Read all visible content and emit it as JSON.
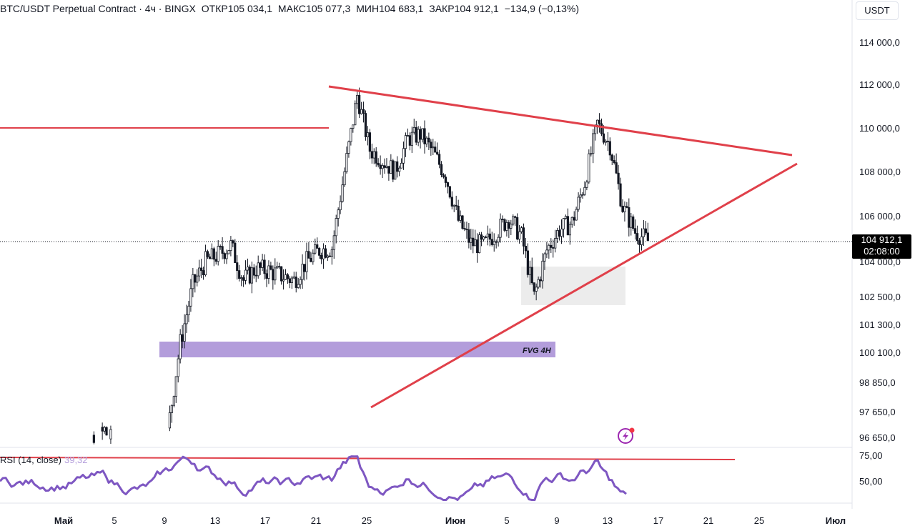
{
  "header": {
    "symbol": "BTC/USDT Perpetual Contract · 4ч · BINGX",
    "open_label": "ОТКР",
    "open_value": "105 034,1",
    "high_label": "МАКС",
    "high_value": "105 077,3",
    "low_label": "МИН",
    "low_value": "104 683,1",
    "close_label": "ЗАКР",
    "close_value": "104 912,1",
    "change": "−134,9 (−0,13%)"
  },
  "currency_button": "USDT",
  "last_price": {
    "price": "104 912,1",
    "countdown": "02:08:00"
  },
  "rsi": {
    "label": "RSI (14, close)",
    "value": "39,32",
    "ticks": [
      "75,00",
      "50,00"
    ]
  },
  "fvg_label": "FVG 4H",
  "colors": {
    "candle": "#131722",
    "trendline": "#e0404a",
    "fvg_zone": "#b39ddb",
    "rsi_line": "#7e57c2",
    "grey_zone": "#ececec"
  },
  "chart_data": {
    "type": "candlestick",
    "price_axis_ticks": [
      "114 000,0",
      "112 000,0",
      "110 000,0",
      "108 000,0",
      "106 000,0",
      "104 000,0",
      "102 500,0",
      "101 300,0",
      "100 100,0",
      "98 850,0",
      "97 650,0",
      "96 650,0"
    ],
    "time_axis_ticks": [
      "Май",
      "5",
      "9",
      "13",
      "17",
      "21",
      "25",
      "Июн",
      "5",
      "9",
      "13",
      "17",
      "21",
      "25",
      "Июл"
    ],
    "ohlc_close_path": [
      [
        "2025-04-29",
        95400
      ],
      [
        "2025-04-30",
        95800
      ],
      [
        "2025-05-01",
        96300
      ],
      [
        "2025-05-02",
        96900
      ],
      [
        "2025-05-03",
        96200
      ],
      [
        "2025-05-04",
        95500
      ],
      [
        "2025-05-05",
        94800
      ],
      [
        "2025-05-06",
        95000
      ],
      [
        "2025-05-07",
        96800
      ],
      [
        "2025-05-08",
        100500
      ],
      [
        "2025-05-09",
        103000
      ],
      [
        "2025-05-10",
        104000
      ],
      [
        "2025-05-11",
        104300
      ],
      [
        "2025-05-12",
        104700
      ],
      [
        "2025-05-13",
        103200
      ],
      [
        "2025-05-14",
        103700
      ],
      [
        "2025-05-15",
        103600
      ],
      [
        "2025-05-16",
        103400
      ],
      [
        "2025-05-17",
        103200
      ],
      [
        "2025-05-18",
        104000
      ],
      [
        "2025-05-19",
        104500
      ],
      [
        "2025-05-20",
        104600
      ],
      [
        "2025-05-21",
        108000
      ],
      [
        "2025-05-22",
        111500
      ],
      [
        "2025-05-23",
        109000
      ],
      [
        "2025-05-24",
        108500
      ],
      [
        "2025-05-25",
        108000
      ],
      [
        "2025-05-26",
        109500
      ],
      [
        "2025-05-27",
        109700
      ],
      [
        "2025-05-28",
        108900
      ],
      [
        "2025-05-29",
        107800
      ],
      [
        "2025-05-30",
        105800
      ],
      [
        "2025-05-31",
        104800
      ],
      [
        "2025-06-01",
        104700
      ],
      [
        "2025-06-02",
        105300
      ],
      [
        "2025-06-03",
        105900
      ],
      [
        "2025-06-04",
        105100
      ],
      [
        "2025-06-05",
        102500
      ],
      [
        "2025-06-06",
        104500
      ],
      [
        "2025-06-07",
        105400
      ],
      [
        "2025-06-08",
        105700
      ],
      [
        "2025-06-09",
        107500
      ],
      [
        "2025-06-10",
        110200
      ],
      [
        "2025-06-11",
        109200
      ],
      [
        "2025-06-12",
        106400
      ],
      [
        "2025-06-13",
        105300
      ],
      [
        "2025-06-14",
        104912.1
      ]
    ],
    "horizontal_levels": [
      {
        "name": "",
        "value": 110000
      }
    ],
    "zones": [
      {
        "name": "FVG 4H",
        "from": 99900,
        "to": 100500
      },
      {
        "name": "",
        "from": 102300,
        "to": 103800
      }
    ],
    "trendlines": [
      {
        "name": "upper",
        "from": [
          "2025-05-21",
          112000
        ],
        "to": [
          "2025-06-28",
          108700
        ]
      },
      {
        "name": "lower",
        "from": [
          "2025-05-23",
          97800
        ],
        "to": [
          "2025-06-28",
          108300
        ]
      }
    ],
    "rsi": {
      "period": 14,
      "last": 39.32,
      "reference_level": 72
    }
  }
}
